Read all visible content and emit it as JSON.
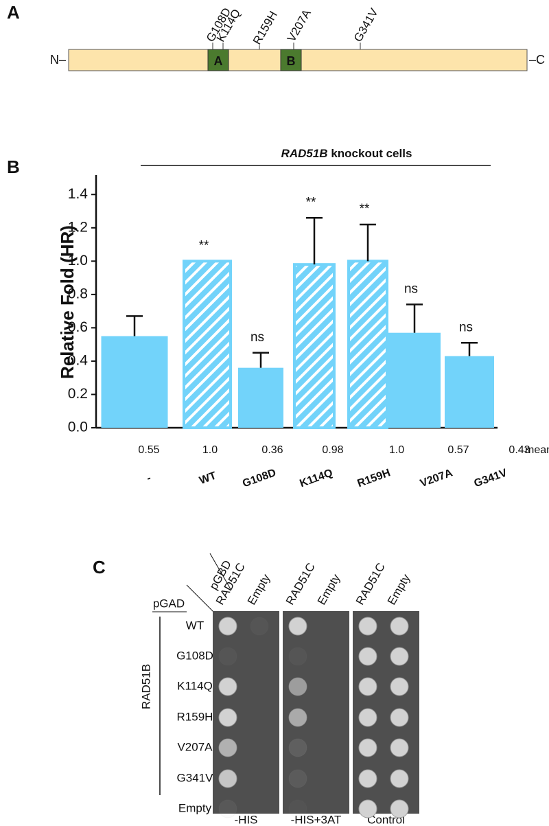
{
  "panel_a": {
    "label": "A",
    "n_term": "N–",
    "c_term": "–C",
    "domains": [
      "A",
      "B"
    ],
    "mutations": [
      "G108D",
      "K114Q",
      "R159H",
      "V207A",
      "G341V"
    ]
  },
  "chart_data": {
    "type": "bar",
    "panel_label": "B",
    "header_gene": "RAD51B",
    "header_text": " knockout cells",
    "y_label": "Relative Fold  (HR)",
    "categories": [
      "-",
      "WT",
      "G108D",
      "K114Q",
      "R159H",
      "V207A",
      "G341V"
    ],
    "values": [
      0.55,
      1.0,
      0.36,
      0.98,
      1.0,
      0.57,
      0.43
    ],
    "value_labels": [
      "0.55",
      "1.0",
      "0.36",
      "0.98",
      "1.0",
      "0.57",
      "0.43"
    ],
    "value_label_title": "mean",
    "errors": [
      0.12,
      0,
      0.09,
      0.28,
      0.22,
      0.17,
      0.08
    ],
    "annotations": [
      "",
      "**",
      "ns",
      "**",
      "**",
      "ns",
      "ns"
    ],
    "hatched": [
      false,
      true,
      false,
      true,
      true,
      false,
      false
    ],
    "color": "#72d3fa",
    "ylim": [
      0,
      1.5
    ],
    "yticks": [
      {
        "value": 0,
        "label": "0.0"
      },
      0.2,
      0.4,
      0.6,
      0.8,
      {
        "value": 1,
        "label": "1.0"
      },
      1.2,
      1.4
    ]
  },
  "panel_c": {
    "label": "C",
    "bait_header": "pGBD",
    "prey_header": "pGAD",
    "columns": [
      "RAD51C",
      "Empty"
    ],
    "group_label": "RAD51B",
    "rows": [
      "WT",
      "G108D",
      "K114Q",
      "R159H",
      "V207A",
      "G341V",
      "Empty"
    ],
    "plates": [
      "-HIS",
      "-HIS+3AT",
      "Control"
    ]
  }
}
